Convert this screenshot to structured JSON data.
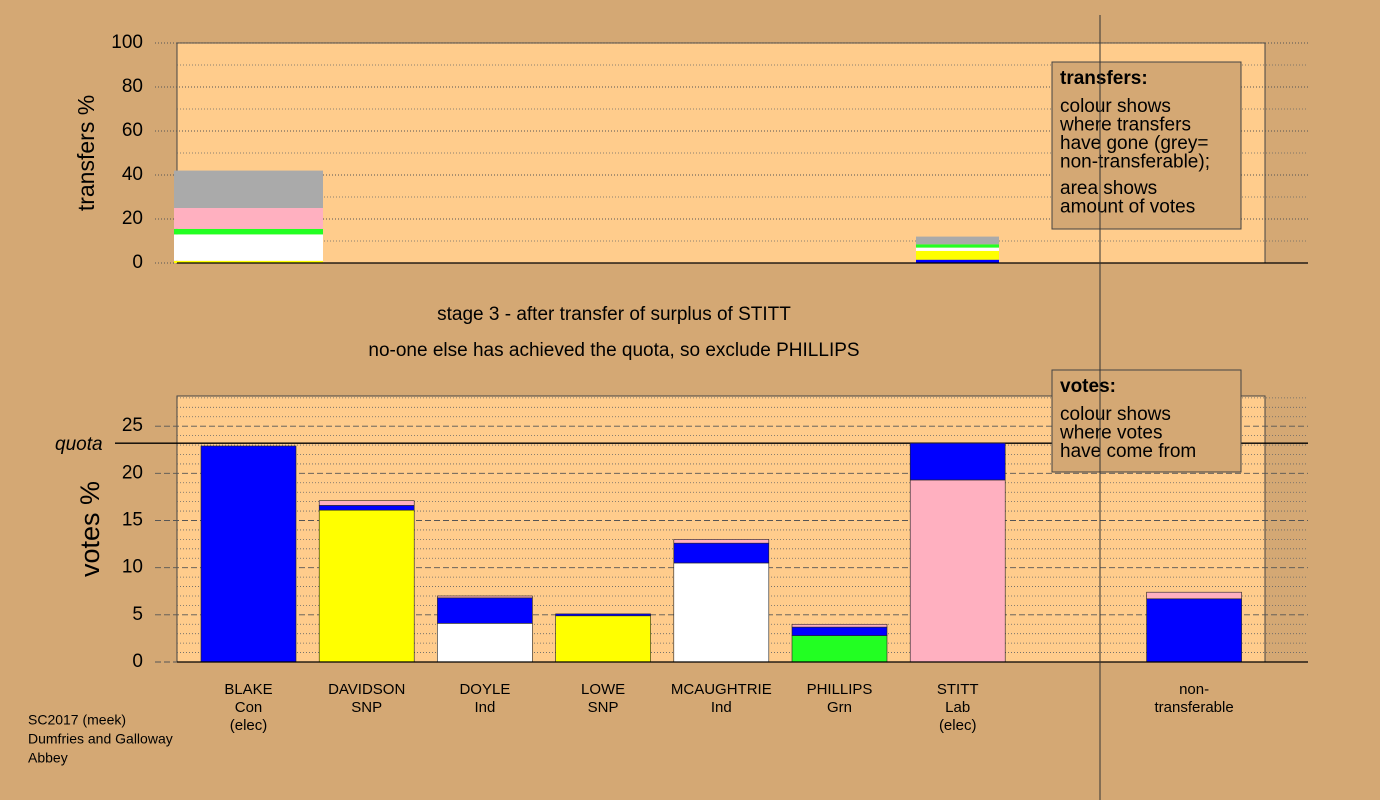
{
  "chart_data": [
    {
      "type": "stacked-bar",
      "ylabel": "transfers %",
      "ylim": [
        0,
        100
      ],
      "yticks": [
        0,
        20,
        40,
        60,
        80,
        100
      ],
      "minor_grid": [
        10,
        30,
        50,
        70,
        90
      ],
      "stacks": [
        [
          {
            "color": "#ffff00",
            "value": 1
          },
          {
            "color": "#ffffff",
            "value": 12
          },
          {
            "color": "#22ff22",
            "value": 2.5
          },
          {
            "color": "#ffb0c0",
            "value": 9.5
          },
          {
            "color": "#aaaaaa",
            "value": 17
          }
        ],
        [
          {
            "color": "#0000ff",
            "value": 1.5
          },
          {
            "color": "#ffff00",
            "value": 4
          },
          {
            "color": "#ffffff",
            "value": 1.5
          },
          {
            "color": "#22ff22",
            "value": 1.5
          },
          {
            "color": "#aaaaaa",
            "value": 3.5
          }
        ]
      ],
      "legend": {
        "title": "transfers:",
        "lines": [
          "colour shows",
          "where transfers",
          "have gone (grey=",
          "non-transferable);",
          "area shows",
          "amount of votes"
        ]
      }
    },
    {
      "type": "stacked-bar",
      "ylabel": "votes %",
      "ylim": [
        0,
        28.2
      ],
      "yticks": [
        0,
        5,
        10,
        15,
        20,
        25
      ],
      "minor_grid": [
        1,
        2,
        3,
        4,
        6,
        7,
        8,
        9,
        11,
        12,
        13,
        14,
        16,
        17,
        18,
        19,
        21,
        22,
        23,
        24,
        26,
        27,
        28
      ],
      "quota": {
        "value": 23.2,
        "label": "quota"
      },
      "categories": [
        [
          "BLAKE",
          "Con",
          "(elec)"
        ],
        [
          "DAVIDSON",
          "SNP"
        ],
        [
          "DOYLE",
          "Ind"
        ],
        [
          "LOWE",
          "SNP"
        ],
        [
          "MCAUGHTRIE",
          "Ind"
        ],
        [
          "PHILLIPS",
          "Grn"
        ],
        [
          "STITT",
          "Lab",
          "(elec)"
        ],
        null,
        [
          "non-",
          "transferable"
        ]
      ],
      "stacks": [
        [
          {
            "color": "#0000ff",
            "value": 22.9
          }
        ],
        [
          {
            "color": "#ffff00",
            "value": 16.1
          },
          {
            "color": "#0000ff",
            "value": 0.5
          },
          {
            "color": "#ffb0c0",
            "value": 0.5
          }
        ],
        [
          {
            "color": "#ffffff",
            "value": 4.1
          },
          {
            "color": "#0000ff",
            "value": 2.7
          },
          {
            "color": "#ffb0c0",
            "value": 0.2
          }
        ],
        [
          {
            "color": "#ffff00",
            "value": 4.9
          },
          {
            "color": "#0000ff",
            "value": 0.2
          }
        ],
        [
          {
            "color": "#ffffff",
            "value": 10.5
          },
          {
            "color": "#0000ff",
            "value": 2.1
          },
          {
            "color": "#ffb0c0",
            "value": 0.4
          }
        ],
        [
          {
            "color": "#22ff22",
            "value": 2.8
          },
          {
            "color": "#0000ff",
            "value": 0.9
          },
          {
            "color": "#ffb0c0",
            "value": 0.3
          }
        ],
        [
          {
            "color": "#ffb0c0",
            "value": 19.3
          },
          {
            "color": "#0000ff",
            "value": 3.9
          }
        ],
        [],
        [
          {
            "color": "#0000ff",
            "value": 6.7
          },
          {
            "color": "#ffb0c0",
            "value": 0.7
          }
        ]
      ],
      "legend": {
        "title": "votes:",
        "lines": [
          "colour shows",
          "where votes",
          "have come from"
        ]
      }
    }
  ],
  "stage": [
    "stage 3 - after transfer of surplus of STITT",
    "no-one else has achieved the quota, so exclude PHILLIPS"
  ],
  "footer": [
    "SC2017 (meek)",
    "Dumfries and Galloway",
    "Abbey"
  ]
}
